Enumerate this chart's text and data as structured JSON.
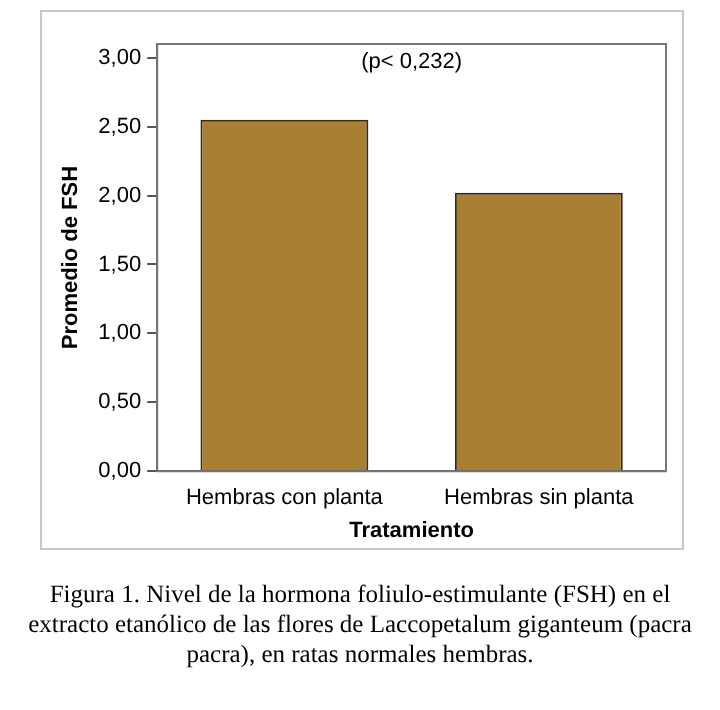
{
  "chart_data": {
    "type": "bar",
    "xlabel": "Tratamiento",
    "ylabel": "Promedio de FSH",
    "categories": [
      "Hembras con planta",
      "Hembras sin planta"
    ],
    "values": [
      2.55,
      2.02
    ],
    "color": "#a97f34",
    "ylim": [
      0,
      3.1
    ],
    "yticks": [
      {
        "value": 0,
        "label": "0,00"
      },
      {
        "value": 0.5,
        "label": "0,50"
      },
      {
        "value": 1,
        "label": "1,00"
      },
      {
        "value": 1.5,
        "label": "1,50"
      },
      {
        "value": 2,
        "label": "2,00"
      },
      {
        "value": 2.5,
        "label": "2,50"
      },
      {
        "value": 3,
        "label": "3,00"
      }
    ],
    "grid": false,
    "annotations": [
      "(p< 0,232)",
      "Figura 1. Nivel de la hormona foliulo-estimulante (FSH) en el extracto etanólico de las flores de Laccopetalum giganteum (pacra pacra), en ratas normales hembras."
    ]
  }
}
